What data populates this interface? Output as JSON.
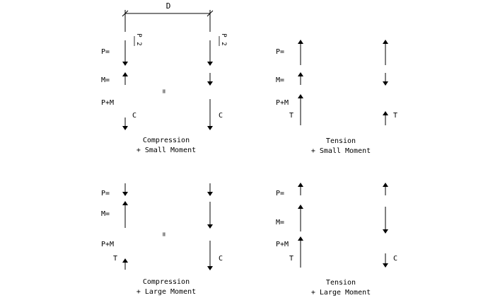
{
  "colors": {
    "background": "#ffffff",
    "ink": "#000000"
  },
  "dimension": {
    "label": "D"
  },
  "symbols": {
    "p": "P=",
    "m": "M=",
    "pm": "P+M",
    "equals": "=",
    "compression_letter": "C",
    "tension_letter": "T",
    "half_load_numerator": "P",
    "half_load_denominator": "2"
  },
  "panels": {
    "compression_small": {
      "line1": "Compression",
      "line2": "+ Small Moment"
    },
    "tension_small": {
      "line1": "Tension",
      "line2": "+ Small Moment"
    },
    "compression_large": {
      "line1": "Compression",
      "line2": "+ Large Moment"
    },
    "tension_large": {
      "line1": "Tension",
      "line2": "+ Large Moment"
    }
  }
}
